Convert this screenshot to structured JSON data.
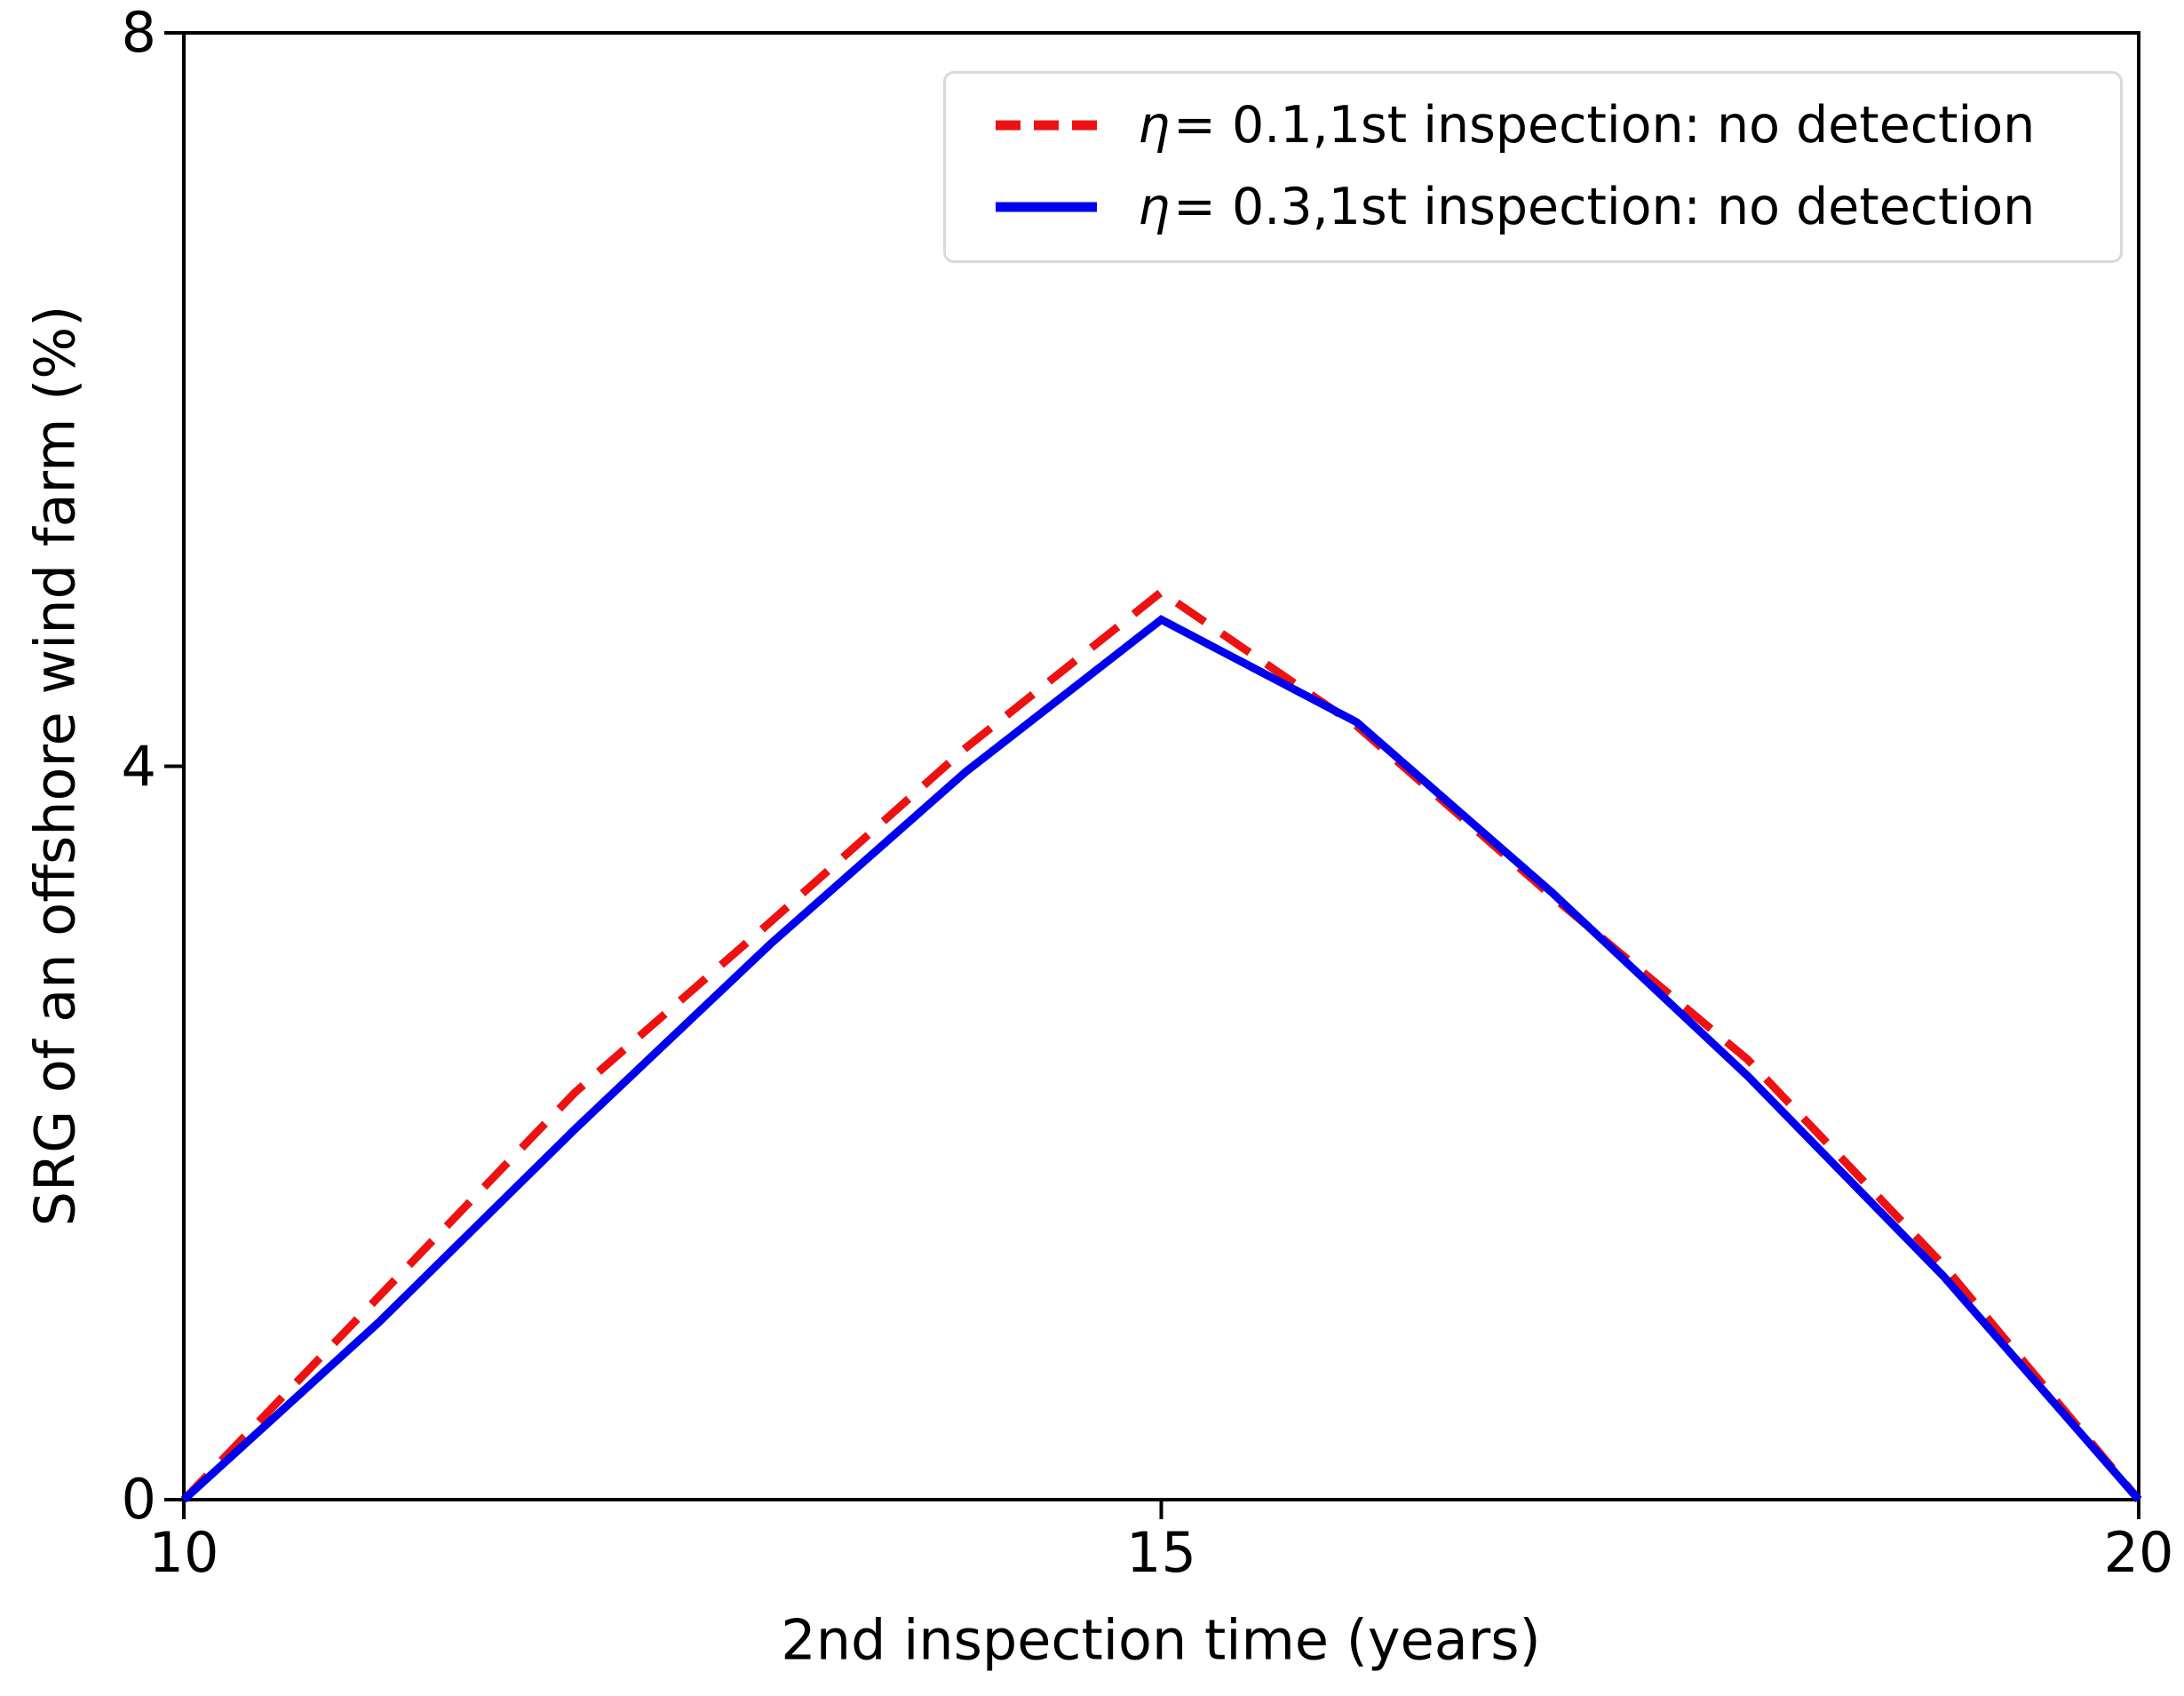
{
  "figure": {
    "background": "#ffffff",
    "axis_color": "#000000"
  },
  "chart_data": {
    "type": "line",
    "title": "",
    "xlabel": "2nd inspection time (years)",
    "ylabel": "SRG of an offshore wind farm (%)",
    "xlim": [
      10,
      20
    ],
    "ylim": [
      0,
      8
    ],
    "x_ticks": [
      "10",
      "15",
      "20"
    ],
    "x_tick_values": [
      10,
      15,
      20
    ],
    "y_ticks": [
      "0",
      "4",
      "8"
    ],
    "y_tick_values": [
      0,
      4,
      8
    ],
    "grid": false,
    "legend_position": "upper right",
    "x": [
      10,
      11,
      12,
      13,
      14,
      15,
      16,
      17,
      18,
      19,
      20
    ],
    "series": [
      {
        "name": "eta-0.1-no-detection",
        "label_symbol": "η",
        "label_rest": "= 0.1,1st inspection: no detection",
        "color": "#ee1111",
        "line_style": "dashed",
        "values": [
          0,
          1.11,
          2.22,
          3.15,
          4.1,
          4.95,
          4.22,
          3.29,
          2.4,
          1.28,
          0
        ]
      },
      {
        "name": "eta-0.3-no-detection",
        "label_symbol": "η",
        "label_rest": "= 0.3,1st inspection: no detection",
        "color": "#0000ee",
        "line_style": "solid",
        "values": [
          0,
          0.97,
          2.02,
          3.03,
          3.97,
          4.8,
          4.24,
          3.31,
          2.31,
          1.22,
          0
        ]
      }
    ]
  }
}
